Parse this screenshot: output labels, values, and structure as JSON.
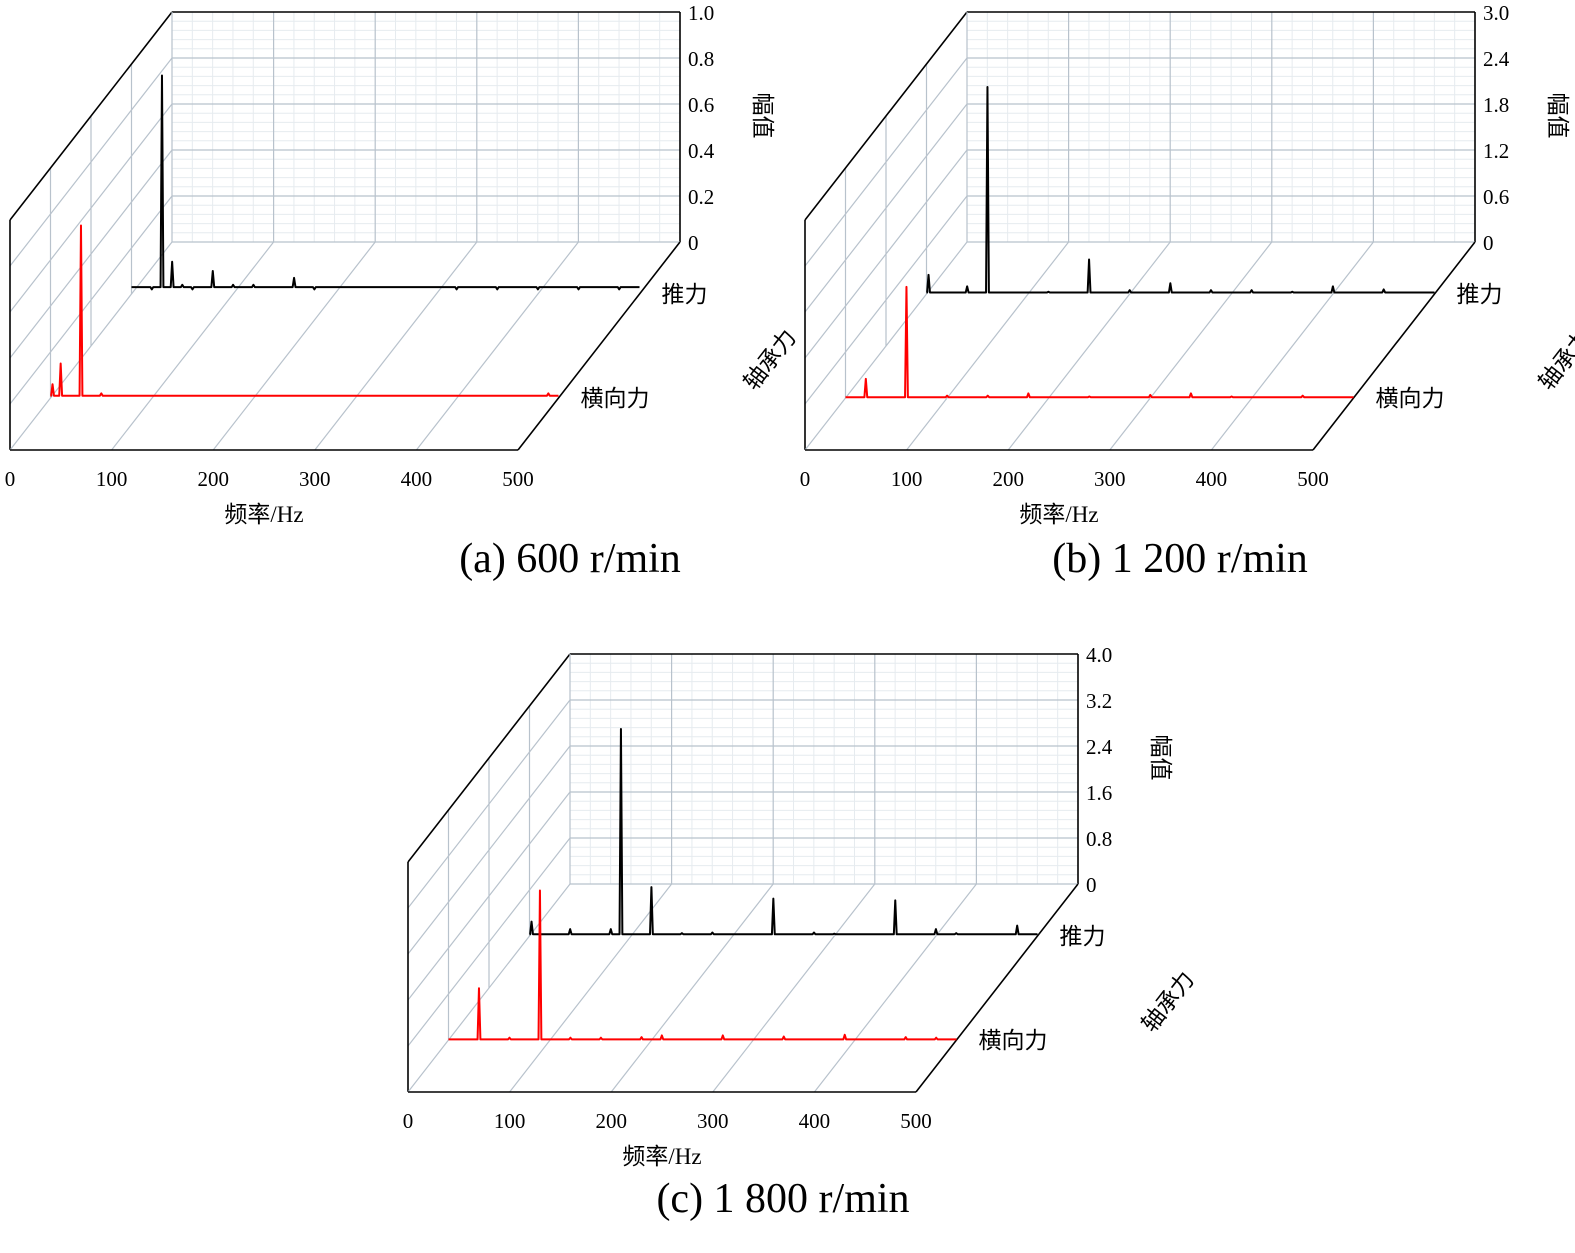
{
  "colors": {
    "thrust": "#000000",
    "lateral": "#ff0000",
    "grid": "#b8c2cc",
    "minor_grid": "#e6ebef",
    "axis": "#000000"
  },
  "chart_data": [
    {
      "id": "a",
      "type": "line",
      "caption": "(a) 600 r/min",
      "xlabel": "频率/Hz",
      "ylabel": "幅值",
      "depth_label": "轴承力",
      "x_ticks": [
        "0",
        "100",
        "200",
        "300",
        "400",
        "500"
      ],
      "x_range": [
        0,
        500
      ],
      "z_ticks": [
        "0",
        "0.2",
        "0.4",
        "0.6",
        "0.8",
        "1.0"
      ],
      "z_range": [
        0,
        1.0
      ],
      "series": [
        {
          "name": "推力",
          "base": 0.03,
          "peaks": [
            [
              10,
              0.03
            ],
            [
              20,
              0.02
            ],
            [
              30,
              0.95
            ],
            [
              40,
              0.14
            ],
            [
              50,
              0.04
            ],
            [
              60,
              0.02
            ],
            [
              70,
              0.03
            ],
            [
              80,
              0.1
            ],
            [
              90,
              0.03
            ],
            [
              100,
              0.04
            ],
            [
              110,
              0.03
            ],
            [
              120,
              0.04
            ],
            [
              160,
              0.07
            ],
            [
              180,
              0.02
            ],
            [
              200,
              0.03
            ],
            [
              240,
              0.03
            ],
            [
              280,
              0.03
            ],
            [
              300,
              0.03
            ],
            [
              320,
              0.02
            ],
            [
              360,
              0.02
            ],
            [
              400,
              0.02
            ],
            [
              440,
              0.02
            ],
            [
              480,
              0.02
            ]
          ]
        },
        {
          "name": "横向力",
          "base": 0.01,
          "peaks": [
            [
              2,
              0.06
            ],
            [
              10,
              0.15
            ],
            [
              30,
              0.75
            ],
            [
              50,
              0.02
            ],
            [
              60,
              0.01
            ],
            [
              100,
              0.01
            ],
            [
              200,
              0.01
            ],
            [
              240,
              0.01
            ],
            [
              280,
              0.01
            ],
            [
              300,
              0.01
            ],
            [
              330,
              0.01
            ],
            [
              380,
              0.01
            ],
            [
              420,
              0.01
            ],
            [
              490,
              0.02
            ]
          ]
        }
      ]
    },
    {
      "id": "b",
      "type": "line",
      "caption": "(b) 1 200 r/min",
      "xlabel": "频率/Hz",
      "ylabel": "幅值",
      "depth_label": "轴承力",
      "x_ticks": [
        "0",
        "100",
        "200",
        "300",
        "400",
        "500"
      ],
      "x_range": [
        0,
        500
      ],
      "z_ticks": [
        "0",
        "0.6",
        "1.2",
        "1.8",
        "2.4",
        "3.0"
      ],
      "z_range": [
        0,
        3.0
      ],
      "series": [
        {
          "name": "推力",
          "base": 0.02,
          "peaks": [
            [
              2,
              0.25
            ],
            [
              40,
              0.1
            ],
            [
              60,
              2.7
            ],
            [
              80,
              0.02
            ],
            [
              120,
              0.03
            ],
            [
              160,
              0.45
            ],
            [
              200,
              0.05
            ],
            [
              240,
              0.14
            ],
            [
              280,
              0.05
            ],
            [
              320,
              0.05
            ],
            [
              360,
              0.03
            ],
            [
              400,
              0.1
            ],
            [
              450,
              0.06
            ]
          ]
        },
        {
          "name": "横向力",
          "base": 0.01,
          "peaks": [
            [
              20,
              0.25
            ],
            [
              60,
              1.45
            ],
            [
              100,
              0.03
            ],
            [
              140,
              0.03
            ],
            [
              180,
              0.06
            ],
            [
              240,
              0.02
            ],
            [
              300,
              0.04
            ],
            [
              340,
              0.06
            ],
            [
              380,
              0.02
            ],
            [
              450,
              0.03
            ]
          ]
        }
      ]
    },
    {
      "id": "c",
      "type": "line",
      "caption": "(c) 1 800 r/min",
      "xlabel": "频率/Hz",
      "ylabel": "幅值",
      "depth_label": "轴承力",
      "x_ticks": [
        "0",
        "100",
        "200",
        "300",
        "400",
        "500"
      ],
      "x_range": [
        0,
        500
      ],
      "z_ticks": [
        "0",
        "0.8",
        "1.6",
        "2.4",
        "3.2",
        "4.0"
      ],
      "z_range": [
        0,
        4.0
      ],
      "series": [
        {
          "name": "推力",
          "base": 0.03,
          "peaks": [
            [
              2,
              0.25
            ],
            [
              40,
              0.12
            ],
            [
              80,
              0.12
            ],
            [
              90,
              3.6
            ],
            [
              120,
              0.85
            ],
            [
              150,
              0.05
            ],
            [
              180,
              0.06
            ],
            [
              240,
              0.65
            ],
            [
              280,
              0.06
            ],
            [
              300,
              0.04
            ],
            [
              360,
              0.62
            ],
            [
              400,
              0.12
            ],
            [
              420,
              0.05
            ],
            [
              480,
              0.18
            ]
          ]
        },
        {
          "name": "横向力",
          "base": 0.01,
          "peaks": [
            [
              30,
              0.9
            ],
            [
              60,
              0.04
            ],
            [
              90,
              2.6
            ],
            [
              120,
              0.04
            ],
            [
              150,
              0.04
            ],
            [
              190,
              0.05
            ],
            [
              210,
              0.08
            ],
            [
              270,
              0.08
            ],
            [
              330,
              0.06
            ],
            [
              390,
              0.09
            ],
            [
              450,
              0.05
            ],
            [
              480,
              0.04
            ]
          ]
        }
      ]
    }
  ]
}
